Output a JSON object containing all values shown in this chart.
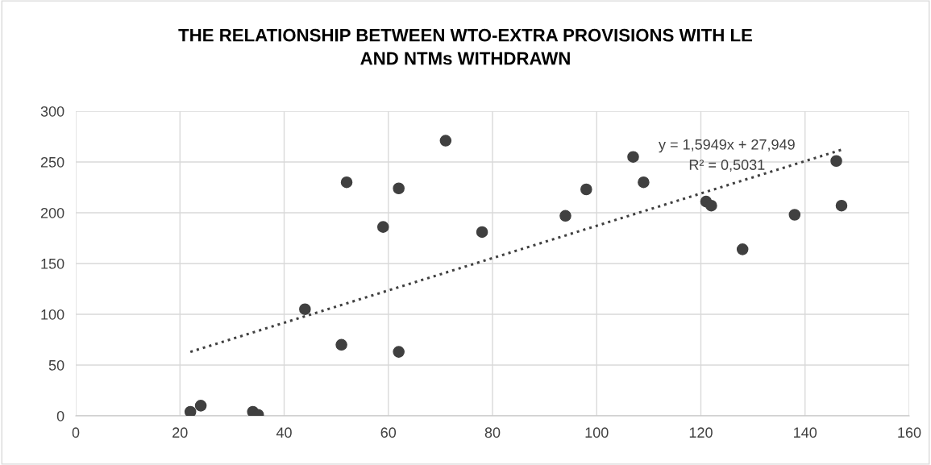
{
  "chart_data": {
    "type": "scatter",
    "title": "THE RELATIONSHIP BETWEEN WTO-EXTRA PROVISIONS WITH LE\nAND NTMs WITHDRAWN",
    "series": [
      {
        "color": "#404040",
        "marker": "circle",
        "x": [
          22,
          24,
          34,
          35,
          44,
          51,
          52,
          59,
          62,
          62,
          71,
          78,
          94,
          98,
          107,
          109,
          121,
          122,
          128,
          138,
          146,
          147
        ],
        "values": [
          4,
          10,
          4,
          1,
          105,
          70,
          230,
          186,
          224,
          63,
          271,
          181,
          197,
          223,
          255,
          230,
          211,
          207,
          164,
          198,
          251,
          207
        ]
      },
      {
        "type": "line",
        "color": "#404040",
        "line_style": "dotted",
        "x": [
          22,
          147
        ],
        "values": [
          63,
          262
        ]
      }
    ],
    "annotations": [
      "y = 1,5949x + 27,949",
      "R² = 0,5031"
    ],
    "xlim": [
      0,
      160
    ],
    "xticks": [
      0,
      20,
      40,
      60,
      80,
      100,
      120,
      140,
      160
    ],
    "ylim": [
      0,
      300
    ],
    "yticks": [
      0,
      50,
      100,
      150,
      200,
      250,
      300
    ],
    "grid": true
  }
}
